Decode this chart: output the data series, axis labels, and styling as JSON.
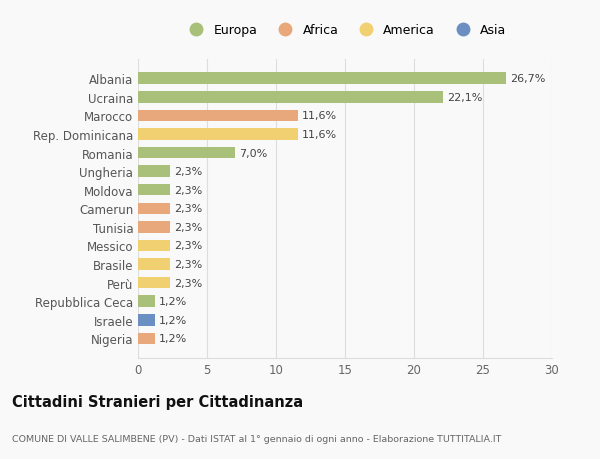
{
  "categories": [
    "Albania",
    "Ucraina",
    "Marocco",
    "Rep. Dominicana",
    "Romania",
    "Ungheria",
    "Moldova",
    "Camerun",
    "Tunisia",
    "Messico",
    "Brasile",
    "Perù",
    "Repubblica Ceca",
    "Israele",
    "Nigeria"
  ],
  "values": [
    26.7,
    22.1,
    11.6,
    11.6,
    7.0,
    2.3,
    2.3,
    2.3,
    2.3,
    2.3,
    2.3,
    2.3,
    1.2,
    1.2,
    1.2
  ],
  "labels": [
    "26,7%",
    "22,1%",
    "11,6%",
    "11,6%",
    "7,0%",
    "2,3%",
    "2,3%",
    "2,3%",
    "2,3%",
    "2,3%",
    "2,3%",
    "2,3%",
    "1,2%",
    "1,2%",
    "1,2%"
  ],
  "colors": [
    "#a8c07a",
    "#a8c07a",
    "#e8a87c",
    "#f0d070",
    "#a8c07a",
    "#a8c07a",
    "#a8c07a",
    "#e8a87c",
    "#e8a87c",
    "#f0d070",
    "#f0d070",
    "#f0d070",
    "#a8c07a",
    "#6b8fc2",
    "#e8a87c"
  ],
  "legend_labels": [
    "Europa",
    "Africa",
    "America",
    "Asia"
  ],
  "legend_colors": [
    "#a8c07a",
    "#e8a87c",
    "#f0d070",
    "#6b8fc2"
  ],
  "xlim": [
    0,
    30
  ],
  "xticks": [
    0,
    5,
    10,
    15,
    20,
    25,
    30
  ],
  "title": "Cittadini Stranieri per Cittadinanza",
  "subtitle": "COMUNE DI VALLE SALIMBENE (PV) - Dati ISTAT al 1° gennaio di ogni anno - Elaborazione TUTTITALIA.IT",
  "bg_color": "#f9f9f9",
  "grid_color": "#dddddd"
}
